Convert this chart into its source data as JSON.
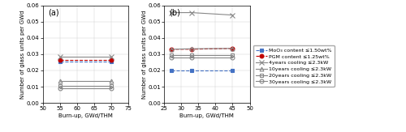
{
  "panel_a": {
    "title": "(a)",
    "xlabel": "Burn-up, GWd/THM",
    "ylabel": "Number of glass units per GWd",
    "xlim": [
      50,
      75
    ],
    "ylim": [
      0.0,
      0.06
    ],
    "xticks": [
      50,
      55,
      60,
      65,
      70,
      75
    ],
    "yticks": [
      0.0,
      0.01,
      0.02,
      0.03,
      0.04,
      0.05,
      0.06
    ],
    "series": {
      "MoO3": {
        "x": [
          55,
          70
        ],
        "y": [
          0.0255,
          0.0255
        ],
        "color": "#4472C4",
        "linestyle": "--",
        "marker": "s",
        "markersize": 3.5,
        "mfc_solid": true
      },
      "PGM": {
        "x": [
          55,
          70
        ],
        "y": [
          0.0265,
          0.0265
        ],
        "color": "#C00000",
        "linestyle": "--",
        "marker": "o",
        "markersize": 3.5,
        "mfc_solid": true
      },
      "4yr": {
        "x": [
          55,
          70
        ],
        "y": [
          0.0282,
          0.0282
        ],
        "color": "#888888",
        "linestyle": "-",
        "marker": "x",
        "markersize": 4,
        "mfc_solid": true
      },
      "10yr": {
        "x": [
          55,
          70
        ],
        "y": [
          0.0135,
          0.0135
        ],
        "color": "#888888",
        "linestyle": "-",
        "marker": "^",
        "markersize": 3.5,
        "mfc_solid": false
      },
      "20yr": {
        "x": [
          55,
          70
        ],
        "y": [
          0.0103,
          0.0103
        ],
        "color": "#888888",
        "linestyle": "-",
        "marker": "s",
        "markersize": 3.5,
        "mfc_solid": false
      },
      "30yr": {
        "x": [
          55,
          70
        ],
        "y": [
          0.0092,
          0.0092
        ],
        "color": "#888888",
        "linestyle": "-",
        "marker": "o",
        "markersize": 3.5,
        "mfc_solid": false
      }
    }
  },
  "panel_b": {
    "title": "(b)",
    "xlabel": "Burn-up, GWd/THM",
    "ylabel": "Number of glass units per GWd",
    "xlim": [
      25,
      50
    ],
    "ylim": [
      0.0,
      0.06
    ],
    "xticks": [
      25,
      30,
      35,
      40,
      45,
      50
    ],
    "yticks": [
      0.0,
      0.01,
      0.02,
      0.03,
      0.04,
      0.05,
      0.06
    ],
    "series": {
      "MoO3": {
        "x": [
          27,
          33,
          45
        ],
        "y": [
          0.02,
          0.02,
          0.02
        ],
        "color": "#4472C4",
        "linestyle": "--",
        "marker": "s",
        "markersize": 3.5,
        "mfc_solid": true
      },
      "PGM": {
        "x": [
          27,
          33,
          45
        ],
        "y": [
          0.033,
          0.033,
          0.0335
        ],
        "color": "#C00000",
        "linestyle": "--",
        "marker": "o",
        "markersize": 3.5,
        "mfc_solid": true
      },
      "4yr": {
        "x": [
          27,
          33,
          45
        ],
        "y": [
          0.0555,
          0.0555,
          0.054
        ],
        "color": "#888888",
        "linestyle": "-",
        "marker": "x",
        "markersize": 4,
        "mfc_solid": true
      },
      "10yr": {
        "x": [
          27,
          33,
          45
        ],
        "y": [
          0.033,
          0.0333,
          0.0335
        ],
        "color": "#888888",
        "linestyle": "-",
        "marker": "^",
        "markersize": 3.5,
        "mfc_solid": false
      },
      "20yr": {
        "x": [
          27,
          33,
          45
        ],
        "y": [
          0.0295,
          0.0295,
          0.0295
        ],
        "color": "#888888",
        "linestyle": "-",
        "marker": "s",
        "markersize": 3.5,
        "mfc_solid": false
      },
      "30yr": {
        "x": [
          27,
          33,
          45
        ],
        "y": [
          0.028,
          0.028,
          0.028
        ],
        "color": "#888888",
        "linestyle": "-",
        "marker": "o",
        "markersize": 3.5,
        "mfc_solid": false
      }
    }
  },
  "legend": {
    "labels": [
      "MoO₃ content ≤1.50wt%",
      "PGM content ≤1.25wt%",
      "4years cooling ≤2.3kW",
      "10years cooling ≤2.3kW",
      "20years cooling ≤2.3kW",
      "30years cooling ≤2.3kW"
    ],
    "colors": [
      "#4472C4",
      "#C00000",
      "#888888",
      "#888888",
      "#888888",
      "#888888"
    ],
    "linestyles": [
      "--",
      "--",
      "-",
      "-",
      "-",
      "-"
    ],
    "markers": [
      "s",
      "o",
      "x",
      "^",
      "s",
      "o"
    ],
    "markersizes": [
      3.5,
      3.5,
      4,
      3.5,
      3.5,
      3.5
    ],
    "mfc_solid": [
      true,
      true,
      true,
      false,
      false,
      false
    ]
  }
}
